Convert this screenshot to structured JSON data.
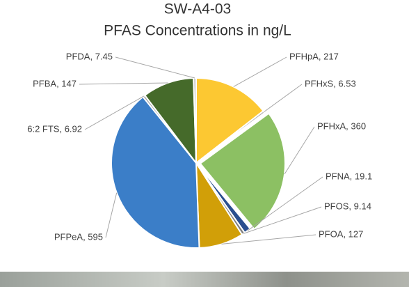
{
  "chart_data": {
    "type": "pie",
    "title": "SW-A4-03",
    "subtitle": "PFAS Concentrations in ng/L",
    "values": [
      217,
      6.53,
      360,
      19.1,
      9.14,
      127,
      595,
      6.92,
      147,
      7.45
    ],
    "value_labels": [
      "PFHpA, 217",
      "PFHxS, 6.53",
      "PFHxA, 360",
      "PFNA, 19.1",
      "PFOS, 9.14",
      "PFOA, 127",
      "PFPeA, 595",
      "6:2 FTS, 6.92",
      "PFBA, 147",
      "PFDA, 7.45"
    ],
    "colors": [
      "#fcc832",
      "#b0b0b0",
      "#8cc063",
      "#2a4f8f",
      "#7f7f7f",
      "#d19f08",
      "#3b7ec8",
      "#a5a5a5",
      "#456a2a",
      "#c0c0c0"
    ]
  }
}
